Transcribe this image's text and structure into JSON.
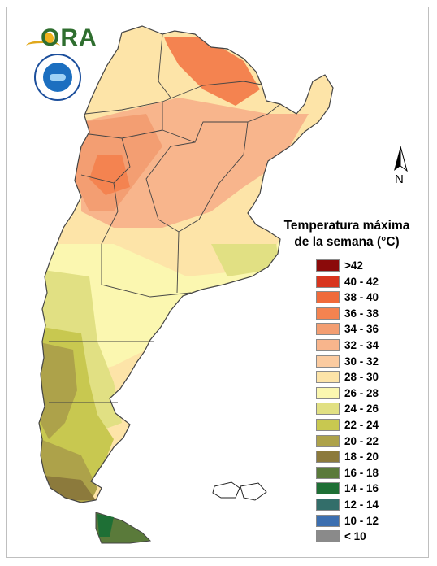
{
  "map": {
    "title_lines": [
      "Temperatura máxima",
      "de la semana (°C)"
    ],
    "north_label": "N",
    "logo_text": "ORA",
    "legend": [
      {
        "label": ">42",
        "color": "#8b0a0a"
      },
      {
        "label": "40 - 42",
        "color": "#d8351e"
      },
      {
        "label": "38 - 40",
        "color": "#f06a3a"
      },
      {
        "label": "36 - 38",
        "color": "#f48350"
      },
      {
        "label": "34 - 36",
        "color": "#f39e72"
      },
      {
        "label": "32 - 34",
        "color": "#f8b58c"
      },
      {
        "label": "30 - 32",
        "color": "#fbcba0"
      },
      {
        "label": "28 - 30",
        "color": "#fde4a8"
      },
      {
        "label": "26 - 28",
        "color": "#fbf7b0"
      },
      {
        "label": "24 - 26",
        "color": "#e1e083"
      },
      {
        "label": "22 - 24",
        "color": "#c8c850"
      },
      {
        "label": "20 - 22",
        "color": "#ada24a"
      },
      {
        "label": "18 - 20",
        "color": "#8c7a3c"
      },
      {
        "label": "16 - 18",
        "color": "#5a7a3a"
      },
      {
        "label": "14 - 16",
        "color": "#1e6f35"
      },
      {
        "label": "12 - 14",
        "color": "#336e6a"
      },
      {
        "label": "10 - 12",
        "color": "#3c6fb0"
      },
      {
        "label": "< 10",
        "color": "#8a8a8a"
      }
    ]
  }
}
